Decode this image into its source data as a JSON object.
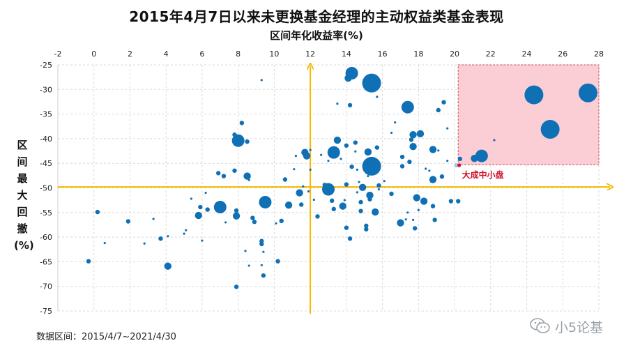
{
  "page": {
    "title": "2015年4月7日以来未更换基金经理的主动权益类基金表现",
    "footer": "数据区间：2015/4/7~2021/4/30",
    "brand_name": "小5论基",
    "brand_icon": "wechat-icon"
  },
  "chart_data": {
    "type": "scatter",
    "title": "2015年4月7日以来未更换基金经理的主动权益类基金表现",
    "xlabel": "区间年化收益率(%)",
    "ylabel": "区间最大回撤(%)",
    "xlim": [
      -2,
      28
    ],
    "ylim": [
      -75,
      -25
    ],
    "x_ticks": [
      -2,
      0,
      2,
      4,
      6,
      8,
      10,
      12,
      14,
      16,
      18,
      20,
      22,
      24,
      26,
      28
    ],
    "y_ticks": [
      -25,
      -30,
      -35,
      -40,
      -45,
      -50,
      -55,
      -60,
      -65,
      -70,
      -75
    ],
    "x_tick_labels": [
      "-2",
      "0",
      "2",
      "4",
      "6",
      "8",
      "10",
      "12",
      "14",
      "16",
      "18",
      "20",
      "22",
      "24",
      "26",
      "28"
    ],
    "y_tick_labels": [
      "-25",
      "-30",
      "-35",
      "-40",
      "-45",
      "-50",
      "-55",
      "-60",
      "-65",
      "-70",
      "-75"
    ],
    "grid": true,
    "reference_lines": {
      "x": 12,
      "y": -49.8
    },
    "highlight_region": {
      "x": [
        20.2,
        28
      ],
      "y": [
        -45.3,
        -25
      ]
    },
    "annotation": {
      "text": "大成中小盘",
      "x": 20.1,
      "y": -45.4
    },
    "colors": {
      "point": "#1070b5",
      "highlight_point": "#a9c8e4",
      "axis_lines": "#f5b800",
      "region_fill": "#f9c9cf",
      "region_border": "#d04b5c",
      "annotation": "#d0112b"
    },
    "points": [
      {
        "x": -0.3,
        "y": -64.9,
        "size": "s"
      },
      {
        "x": 0.2,
        "y": -54.9,
        "size": "s"
      },
      {
        "x": 0.6,
        "y": -61.2,
        "size": "xs"
      },
      {
        "x": 1.9,
        "y": -56.8,
        "size": "s"
      },
      {
        "x": 2.8,
        "y": -61.3,
        "size": "xs"
      },
      {
        "x": 3.3,
        "y": -56.3,
        "size": "xs"
      },
      {
        "x": 3.7,
        "y": -60.3,
        "size": "s"
      },
      {
        "x": 4.1,
        "y": -59.8,
        "size": "xs"
      },
      {
        "x": 4.1,
        "y": -65.9,
        "size": "m"
      },
      {
        "x": 5.0,
        "y": -59.3,
        "size": "xs"
      },
      {
        "x": 5.1,
        "y": -58.6,
        "size": "xs"
      },
      {
        "x": 5.4,
        "y": -52.2,
        "size": "xs"
      },
      {
        "x": 5.8,
        "y": -55.6,
        "size": "m"
      },
      {
        "x": 5.9,
        "y": -53.9,
        "size": "s"
      },
      {
        "x": 6.0,
        "y": -60.7,
        "size": "xs"
      },
      {
        "x": 6.2,
        "y": -51.0,
        "size": "xs"
      },
      {
        "x": 6.3,
        "y": -54.4,
        "size": "s"
      },
      {
        "x": 6.9,
        "y": -47.0,
        "size": "s"
      },
      {
        "x": 7.0,
        "y": -53.9,
        "size": "l"
      },
      {
        "x": 7.2,
        "y": -47.6,
        "size": "s"
      },
      {
        "x": 7.3,
        "y": -57.0,
        "size": "xs"
      },
      {
        "x": 7.8,
        "y": -39.2,
        "size": "s"
      },
      {
        "x": 7.8,
        "y": -46.5,
        "size": "s"
      },
      {
        "x": 7.9,
        "y": -54.6,
        "size": "s"
      },
      {
        "x": 7.9,
        "y": -55.7,
        "size": "m"
      },
      {
        "x": 7.9,
        "y": -70.1,
        "size": "s"
      },
      {
        "x": 8.0,
        "y": -40.4,
        "size": "l"
      },
      {
        "x": 8.2,
        "y": -36.8,
        "size": "s"
      },
      {
        "x": 8.4,
        "y": -62.8,
        "size": "xs"
      },
      {
        "x": 8.5,
        "y": -47.6,
        "size": "m"
      },
      {
        "x": 8.5,
        "y": -40.6,
        "size": "s"
      },
      {
        "x": 8.6,
        "y": -48.4,
        "size": "xs"
      },
      {
        "x": 8.6,
        "y": -65.8,
        "size": "xs"
      },
      {
        "x": 8.8,
        "y": -56.1,
        "size": "s"
      },
      {
        "x": 8.9,
        "y": -56.9,
        "size": "s"
      },
      {
        "x": 9.3,
        "y": -28.1,
        "size": "xs"
      },
      {
        "x": 9.3,
        "y": -60.8,
        "size": "s"
      },
      {
        "x": 9.3,
        "y": -61.4,
        "size": "s"
      },
      {
        "x": 9.3,
        "y": -65.7,
        "size": "xs"
      },
      {
        "x": 9.4,
        "y": -67.8,
        "size": "s"
      },
      {
        "x": 9.4,
        "y": -63.0,
        "size": "xs"
      },
      {
        "x": 9.5,
        "y": -52.9,
        "size": "l"
      },
      {
        "x": 9.6,
        "y": -53.6,
        "size": "s"
      },
      {
        "x": 10.1,
        "y": -57.2,
        "size": "xs"
      },
      {
        "x": 10.2,
        "y": -64.9,
        "size": "s"
      },
      {
        "x": 10.4,
        "y": -56.7,
        "size": "s"
      },
      {
        "x": 10.6,
        "y": -48.3,
        "size": "s"
      },
      {
        "x": 10.8,
        "y": -53.5,
        "size": "m"
      },
      {
        "x": 11.1,
        "y": -46.2,
        "size": "xs"
      },
      {
        "x": 11.2,
        "y": -43.5,
        "size": "xs"
      },
      {
        "x": 11.4,
        "y": -51.0,
        "size": "m"
      },
      {
        "x": 11.5,
        "y": -53.4,
        "size": "s"
      },
      {
        "x": 11.6,
        "y": -49.7,
        "size": "xs"
      },
      {
        "x": 11.7,
        "y": -42.8,
        "size": "m"
      },
      {
        "x": 11.8,
        "y": -43.5,
        "size": "m"
      },
      {
        "x": 11.9,
        "y": -50.7,
        "size": "xs"
      },
      {
        "x": 12.0,
        "y": -46.3,
        "size": "xs"
      },
      {
        "x": 12.0,
        "y": -42.3,
        "size": "xs"
      },
      {
        "x": 12.2,
        "y": -52.4,
        "size": "xs"
      },
      {
        "x": 12.4,
        "y": -55.8,
        "size": "s"
      },
      {
        "x": 12.6,
        "y": -43.3,
        "size": "xs"
      },
      {
        "x": 12.8,
        "y": -49.4,
        "size": "s"
      },
      {
        "x": 13.0,
        "y": -50.3,
        "size": "l"
      },
      {
        "x": 13.0,
        "y": -44.5,
        "size": "xs"
      },
      {
        "x": 13.1,
        "y": -51.1,
        "size": "xs"
      },
      {
        "x": 13.2,
        "y": -52.6,
        "size": "s"
      },
      {
        "x": 13.3,
        "y": -42.4,
        "size": "xs"
      },
      {
        "x": 13.3,
        "y": -54.3,
        "size": "s"
      },
      {
        "x": 13.3,
        "y": -42.8,
        "size": "l"
      },
      {
        "x": 13.5,
        "y": -40.3,
        "size": "m"
      },
      {
        "x": 13.5,
        "y": -32.9,
        "size": "xs"
      },
      {
        "x": 13.7,
        "y": -44.1,
        "size": "xs"
      },
      {
        "x": 13.8,
        "y": -53.7,
        "size": "m"
      },
      {
        "x": 13.9,
        "y": -52.5,
        "size": "xs"
      },
      {
        "x": 14.0,
        "y": -49.3,
        "size": "s"
      },
      {
        "x": 14.0,
        "y": -41.4,
        "size": "s"
      },
      {
        "x": 14.0,
        "y": -58.1,
        "size": "s"
      },
      {
        "x": 14.1,
        "y": -27.7,
        "size": "m"
      },
      {
        "x": 14.2,
        "y": -60.3,
        "size": "s"
      },
      {
        "x": 14.2,
        "y": -33.2,
        "size": "s"
      },
      {
        "x": 14.3,
        "y": -45.7,
        "size": "s"
      },
      {
        "x": 14.3,
        "y": -26.7,
        "size": "l"
      },
      {
        "x": 14.5,
        "y": -42.6,
        "size": "xs"
      },
      {
        "x": 14.5,
        "y": -40.8,
        "size": "s"
      },
      {
        "x": 14.6,
        "y": -46.3,
        "size": "xs"
      },
      {
        "x": 14.6,
        "y": -50.9,
        "size": "xs"
      },
      {
        "x": 14.7,
        "y": -48.8,
        "size": "xs"
      },
      {
        "x": 14.8,
        "y": -54.7,
        "size": "s"
      },
      {
        "x": 14.8,
        "y": -52.9,
        "size": "s"
      },
      {
        "x": 14.9,
        "y": -49.9,
        "size": "m"
      },
      {
        "x": 15.1,
        "y": -57.7,
        "size": "s"
      },
      {
        "x": 15.1,
        "y": -58.4,
        "size": "s"
      },
      {
        "x": 15.2,
        "y": -42.7,
        "size": "m"
      },
      {
        "x": 15.2,
        "y": -47.6,
        "size": "xs"
      },
      {
        "x": 15.3,
        "y": -52.3,
        "size": "s"
      },
      {
        "x": 15.3,
        "y": -51.5,
        "size": "m"
      },
      {
        "x": 15.4,
        "y": -28.7,
        "size": "xl"
      },
      {
        "x": 15.4,
        "y": -45.6,
        "size": "xl"
      },
      {
        "x": 15.6,
        "y": -54.9,
        "size": "m"
      },
      {
        "x": 15.7,
        "y": -31.5,
        "size": "xs"
      },
      {
        "x": 15.7,
        "y": -41.8,
        "size": "s"
      },
      {
        "x": 15.8,
        "y": -49.5,
        "size": "s"
      },
      {
        "x": 15.8,
        "y": -50.3,
        "size": "xs"
      },
      {
        "x": 16.1,
        "y": -48.6,
        "size": "xs"
      },
      {
        "x": 16.5,
        "y": -38.8,
        "size": "xs"
      },
      {
        "x": 16.5,
        "y": -51.2,
        "size": "s"
      },
      {
        "x": 16.7,
        "y": -36.7,
        "size": "xs"
      },
      {
        "x": 17.0,
        "y": -57.1,
        "size": "m"
      },
      {
        "x": 17.1,
        "y": -43.7,
        "size": "s"
      },
      {
        "x": 17.1,
        "y": -45.6,
        "size": "s"
      },
      {
        "x": 17.3,
        "y": -56.4,
        "size": "xs"
      },
      {
        "x": 17.4,
        "y": -55.0,
        "size": "xs"
      },
      {
        "x": 17.4,
        "y": -33.6,
        "size": "l"
      },
      {
        "x": 17.5,
        "y": -44.7,
        "size": "s"
      },
      {
        "x": 17.6,
        "y": -40.2,
        "size": "s"
      },
      {
        "x": 17.7,
        "y": -39.2,
        "size": "m"
      },
      {
        "x": 17.7,
        "y": -41.6,
        "size": "m"
      },
      {
        "x": 17.7,
        "y": -56.5,
        "size": "xs"
      },
      {
        "x": 17.8,
        "y": -58.2,
        "size": "s"
      },
      {
        "x": 17.9,
        "y": -52.0,
        "size": "m"
      },
      {
        "x": 18.0,
        "y": -54.5,
        "size": "xs"
      },
      {
        "x": 18.1,
        "y": -39.0,
        "size": "m"
      },
      {
        "x": 18.3,
        "y": -52.7,
        "size": "m"
      },
      {
        "x": 18.4,
        "y": -46.1,
        "size": "xs"
      },
      {
        "x": 18.6,
        "y": -46.5,
        "size": "xs"
      },
      {
        "x": 18.7,
        "y": -48.7,
        "size": "xs"
      },
      {
        "x": 18.8,
        "y": -53.7,
        "size": "s"
      },
      {
        "x": 18.8,
        "y": -42.2,
        "size": "m"
      },
      {
        "x": 18.8,
        "y": -48.3,
        "size": "m"
      },
      {
        "x": 18.9,
        "y": -56.5,
        "size": "s"
      },
      {
        "x": 19.1,
        "y": -34.2,
        "size": "s"
      },
      {
        "x": 19.1,
        "y": -42.4,
        "size": "xs"
      },
      {
        "x": 19.3,
        "y": -47.7,
        "size": "s"
      },
      {
        "x": 19.4,
        "y": -32.6,
        "size": "s"
      },
      {
        "x": 19.6,
        "y": -44.5,
        "size": "xs"
      },
      {
        "x": 19.6,
        "y": -37.9,
        "size": "xs"
      },
      {
        "x": 19.8,
        "y": -52.7,
        "size": "s"
      },
      {
        "x": 20.3,
        "y": -44.1,
        "size": "s"
      },
      {
        "x": 20.2,
        "y": -52.7,
        "size": "s"
      },
      {
        "x": 20.1,
        "y": -45.4,
        "size": "s",
        "highlight": true
      },
      {
        "x": 21.1,
        "y": -44.0,
        "size": "m"
      },
      {
        "x": 21.5,
        "y": -43.5,
        "size": "l"
      },
      {
        "x": 22.2,
        "y": -40.3,
        "size": "xs"
      },
      {
        "x": 24.4,
        "y": -31.1,
        "size": "xl"
      },
      {
        "x": 25.3,
        "y": -38.1,
        "size": "xl"
      },
      {
        "x": 27.4,
        "y": -30.7,
        "size": "xl"
      }
    ]
  }
}
